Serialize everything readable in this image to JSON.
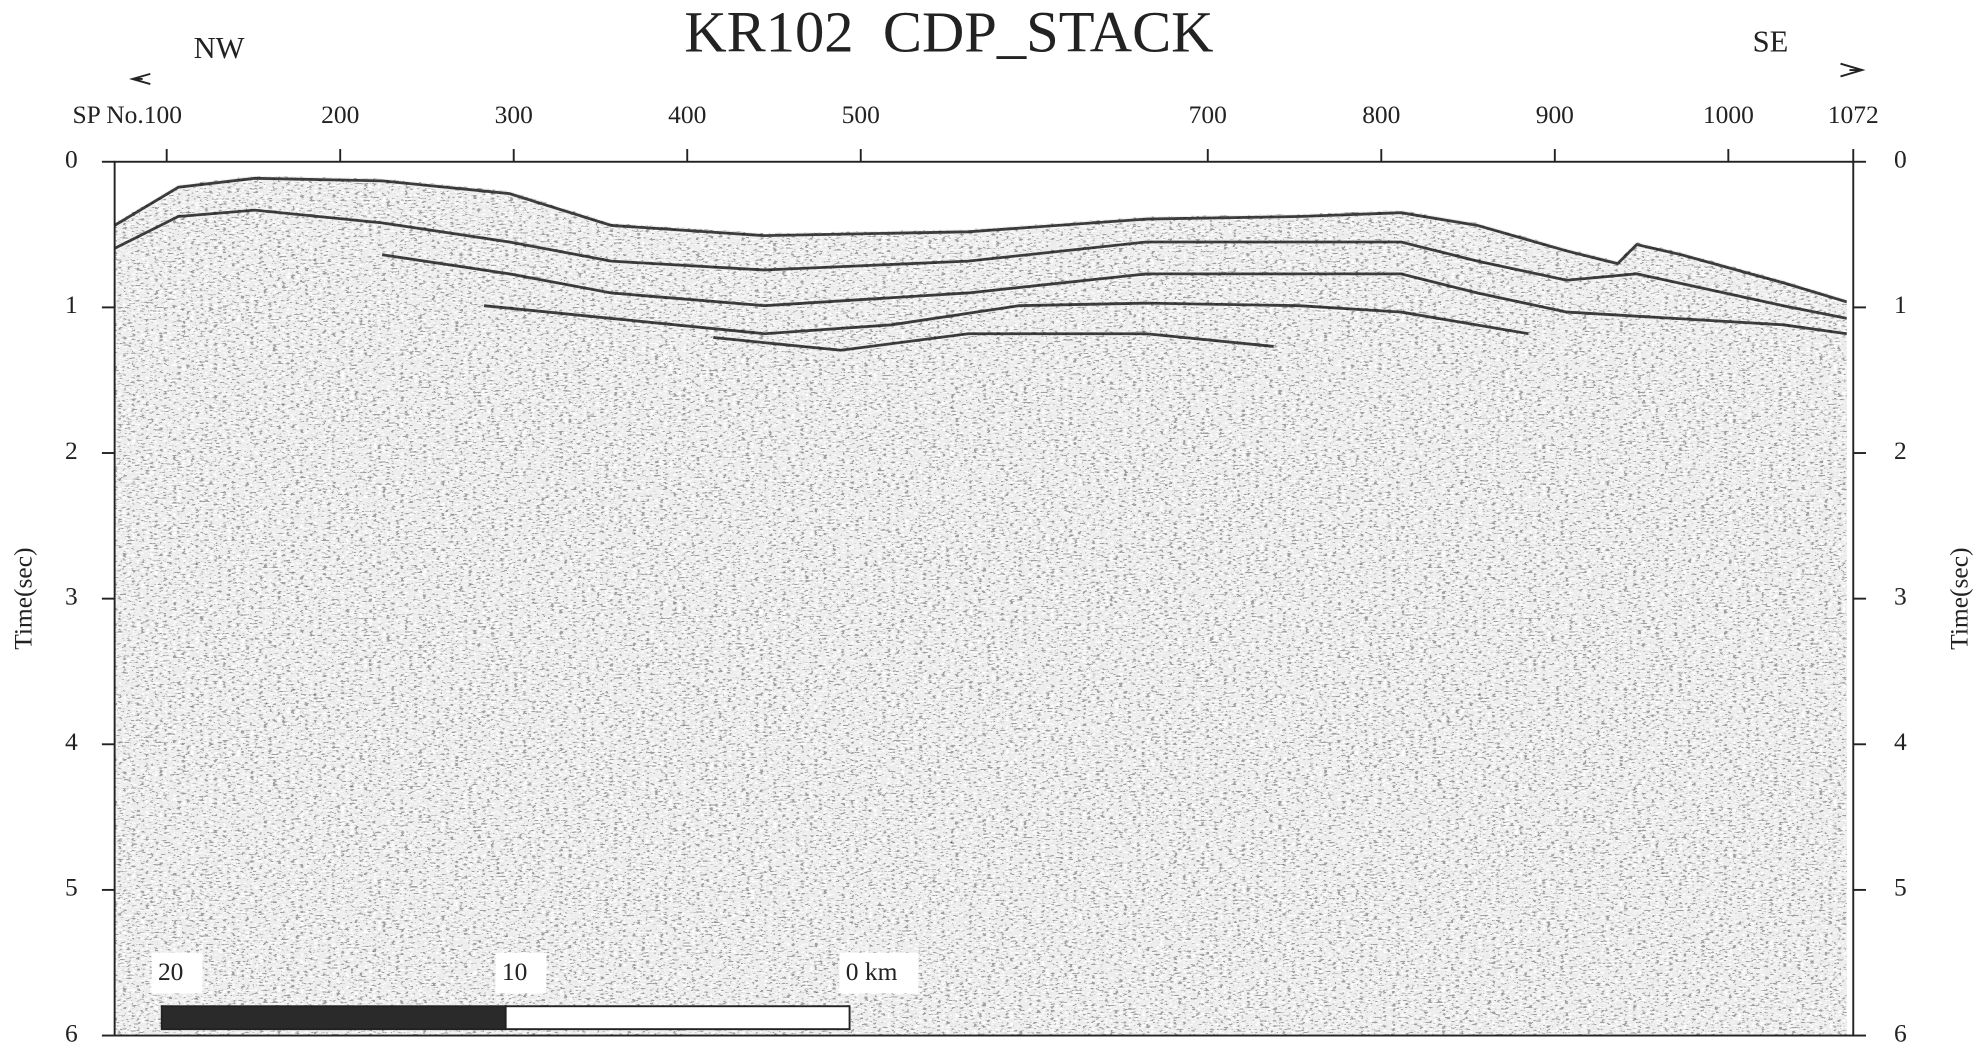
{
  "chart_data": {
    "type": "seismic",
    "title": "KR102  CDP_STACK",
    "direction_left": "NW",
    "direction_right": "SE",
    "xlim": [
      70,
      1072
    ],
    "xticks": [
      {
        "value": 100,
        "label": "SP No.100"
      },
      200,
      300,
      400,
      500,
      700,
      800,
      900,
      1000,
      1072
    ],
    "ylim": [
      0,
      6
    ],
    "yticks": [
      0,
      1,
      2,
      3,
      4,
      5,
      6
    ],
    "y_label": "Time(sec)",
    "scale_bar": {
      "ticks": [
        20,
        10,
        {
          "value": 0,
          "label": "0 km"
        }
      ]
    }
  }
}
